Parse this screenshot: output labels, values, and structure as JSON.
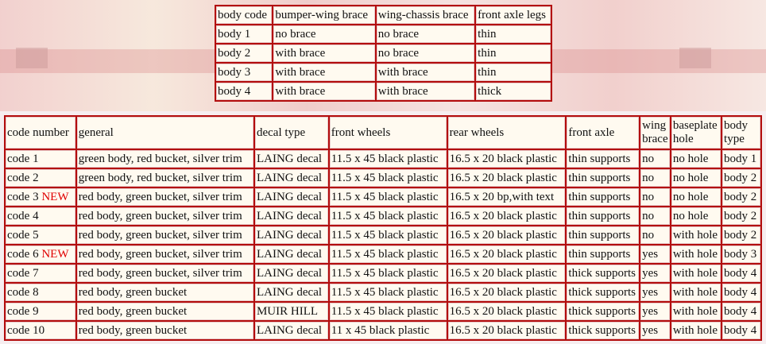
{
  "body_table": {
    "header": [
      "body code",
      "bumper-wing brace",
      "wing-chassis brace",
      "front axle legs"
    ],
    "rows": [
      [
        "body 1",
        "no brace",
        "no brace",
        "thin"
      ],
      [
        "body 2",
        "with brace",
        "no brace",
        "thin"
      ],
      [
        "body 3",
        "with brace",
        "with brace",
        "thin"
      ],
      [
        "body 4",
        "with brace",
        "with brace",
        "thick"
      ]
    ]
  },
  "code_table": {
    "header": [
      "code number",
      "general",
      "decal type",
      "front wheels",
      "rear wheels",
      "front axle",
      "wing brace",
      "baseplate hole",
      "body type"
    ],
    "rows": [
      [
        {
          "text": "code 1"
        },
        "green body, red bucket, silver trim",
        "LAING decal",
        "11.5 x 45 black plastic",
        "16.5 x 20 black plastic",
        "thin supports",
        "no",
        "no hole",
        "body 1"
      ],
      [
        {
          "text": "code 2"
        },
        "green body, red bucket, silver trim",
        "LAING decal",
        "11.5 x 45 black plastic",
        "16.5 x 20 black plastic",
        "thin supports",
        "no",
        "no hole",
        "body 2"
      ],
      [
        {
          "text": "code 3",
          "flag": "NEW"
        },
        "red body, green bucket, silver trim",
        "LAING decal",
        "11.5 x 45 black plastic",
        "16.5 x 20 bp,with text",
        "thin supports",
        "no",
        "no hole",
        "body 2"
      ],
      [
        {
          "text": "code 4"
        },
        "red body, green bucket, silver trim",
        "LAING decal",
        "11.5 x 45 black plastic",
        "16.5 x 20 black plastic",
        "thin supports",
        "no",
        "no hole",
        "body 2"
      ],
      [
        {
          "text": "code 5"
        },
        "red body, green bucket, silver trim",
        "LAING decal",
        "11.5 x 45 black plastic",
        "16.5 x 20 black plastic",
        "thin supports",
        "no",
        "with hole",
        "body 2"
      ],
      [
        {
          "text": "code 6",
          "flag": "NEW"
        },
        "red body, green bucket, silver trim",
        "LAING decal",
        "11.5 x 45 black plastic",
        "16.5 x 20 black plastic",
        "thin supports",
        "yes",
        "with hole",
        "body 3"
      ],
      [
        {
          "text": "code 7"
        },
        "red body, green bucket, silver trim",
        "LAING decal",
        "11.5 x 45 black plastic",
        "16.5 x 20 black plastic",
        "thick supports",
        "yes",
        "with hole",
        "body 4"
      ],
      [
        {
          "text": "code 8"
        },
        "red body, green bucket",
        "LAING decal",
        "11.5 x 45 black plastic",
        "16.5 x 20 black plastic",
        "thick supports",
        "yes",
        "with hole",
        "body 4"
      ],
      [
        {
          "text": "code 9"
        },
        "red body, green bucket",
        "MUIR HILL",
        "11.5 x 45 black plastic",
        "16.5 x 20 black plastic",
        "thick supports",
        "yes",
        "with hole",
        "body 4"
      ],
      [
        {
          "text": "code 10"
        },
        "red body, green bucket",
        "LAING decal",
        "11 x 45 black plastic",
        "16.5 x 20 black plastic",
        "thick supports",
        "yes",
        "with hole",
        "body 4"
      ]
    ]
  }
}
